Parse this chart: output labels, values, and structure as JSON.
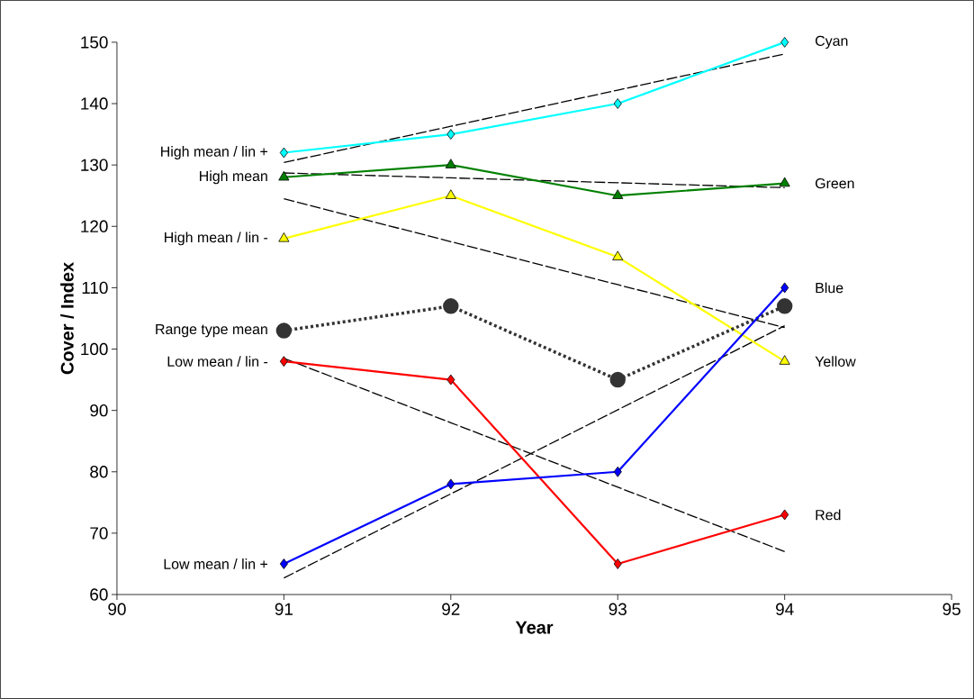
{
  "chart_data": {
    "type": "line",
    "xlabel": "Year",
    "ylabel": "Cover / Index",
    "x": [
      91,
      92,
      93,
      94
    ],
    "xlim": [
      90,
      95
    ],
    "xticks": [
      90,
      91,
      92,
      93,
      94,
      95
    ],
    "ylim": [
      60,
      150
    ],
    "yticks": [
      60,
      70,
      80,
      90,
      100,
      110,
      120,
      130,
      140,
      150
    ],
    "grid": false,
    "series": [
      {
        "name": "Cyan",
        "color": "#00ffff",
        "marker": "diamond",
        "values": [
          132,
          135,
          140,
          150
        ]
      },
      {
        "name": "Green",
        "color": "#008000",
        "marker": "triangle",
        "values": [
          128,
          130,
          125,
          127
        ]
      },
      {
        "name": "Yellow",
        "color": "#ffff00",
        "marker": "triangle",
        "values": [
          118,
          125,
          115,
          98
        ]
      },
      {
        "color": "#333333",
        "marker": "circle",
        "line_style": "dotted",
        "values": [
          103,
          107,
          95,
          107
        ]
      },
      {
        "name": "Red",
        "color": "#ff0000",
        "marker": "diamond",
        "values": [
          98,
          95,
          65,
          73
        ]
      },
      {
        "name": "Blue",
        "color": "#0000ff",
        "marker": "diamond",
        "values": [
          65,
          78,
          80,
          110
        ]
      },
      {
        "type": "line",
        "color": "#000000",
        "marker": "none",
        "line_style": "dashed",
        "values": [
          130.4,
          136.3,
          142.2,
          148.1
        ]
      },
      {
        "type": "line",
        "color": "#000000",
        "marker": "none",
        "line_style": "dashed",
        "values": [
          128.7,
          127.9,
          127.1,
          126.3
        ]
      },
      {
        "type": "line",
        "color": "#000000",
        "marker": "none",
        "line_style": "dashed",
        "values": [
          124.5,
          117.5,
          110.5,
          103.5
        ]
      },
      {
        "type": "line",
        "color": "#000000",
        "marker": "none",
        "line_style": "dashed",
        "values": [
          98.5,
          88,
          77.5,
          67
        ]
      },
      {
        "type": "line",
        "color": "#000000",
        "marker": "none",
        "line_style": "dashed",
        "values": [
          62.7,
          76.4,
          90.1,
          103.8
        ]
      }
    ],
    "annotations": [
      "High mean / lin +",
      "High mean",
      "High mean / lin -",
      "Range type mean",
      "Low mean / lin -",
      "Low mean / lin +"
    ]
  }
}
